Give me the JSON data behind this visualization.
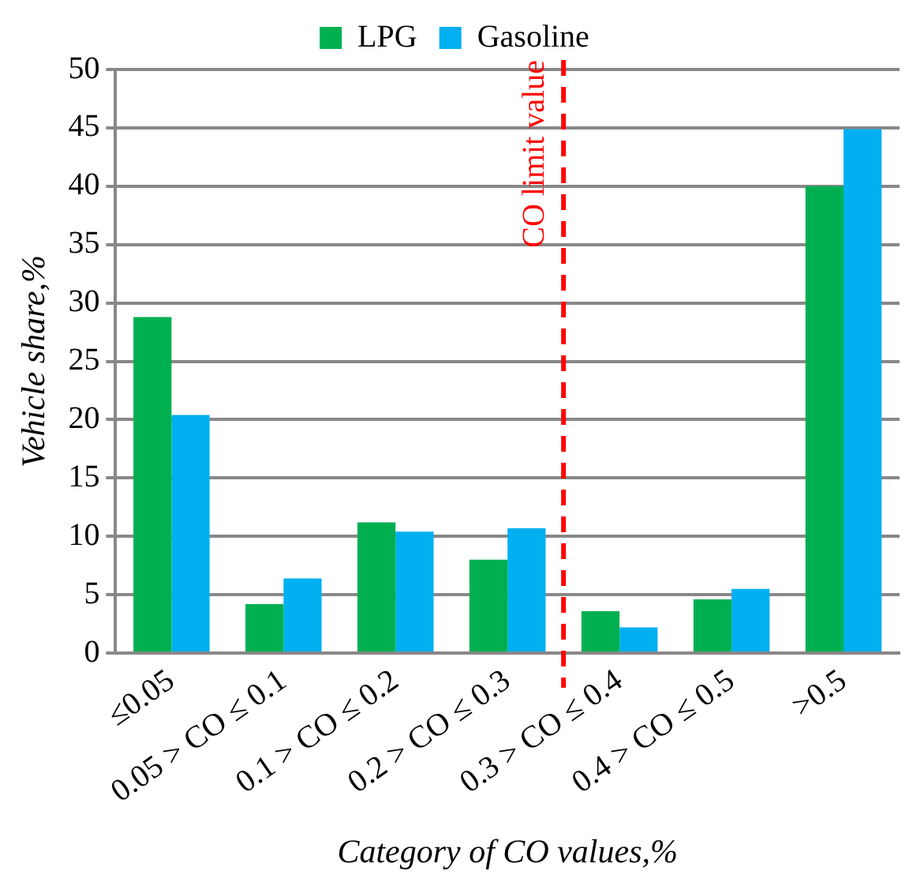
{
  "chart_data": {
    "type": "bar",
    "categories": [
      "≤0.05",
      "0.05 > CO ≤ 0.1",
      "0.1 > CO ≤ 0.2",
      "0.2 > CO ≤ 0.3",
      "0.3 > CO ≤ 0.4",
      "0.4 > CO ≤ 0.5",
      ">0.5"
    ],
    "series": [
      {
        "name": "LPG",
        "color": "#00b050",
        "values": [
          28.8,
          4.2,
          11.2,
          8.0,
          3.6,
          4.6,
          40.0
        ]
      },
      {
        "name": "Gasoline",
        "color": "#00b0f0",
        "values": [
          20.4,
          6.4,
          10.4,
          10.7,
          2.2,
          5.5,
          44.9
        ]
      }
    ],
    "xlabel": "Category of CO values,%",
    "ylabel": "Vehicle share,%",
    "ylim": [
      0,
      50
    ],
    "yticks": [
      0,
      5,
      10,
      15,
      20,
      25,
      30,
      35,
      40,
      45,
      50
    ],
    "grid": "y",
    "legend": "top",
    "ref_lines": [
      {
        "axis": "x",
        "value": "0.3 > CO ≤ 0.4",
        "label": "CO limit value",
        "color": "#ff0000",
        "line_style": "dashed"
      }
    ]
  }
}
